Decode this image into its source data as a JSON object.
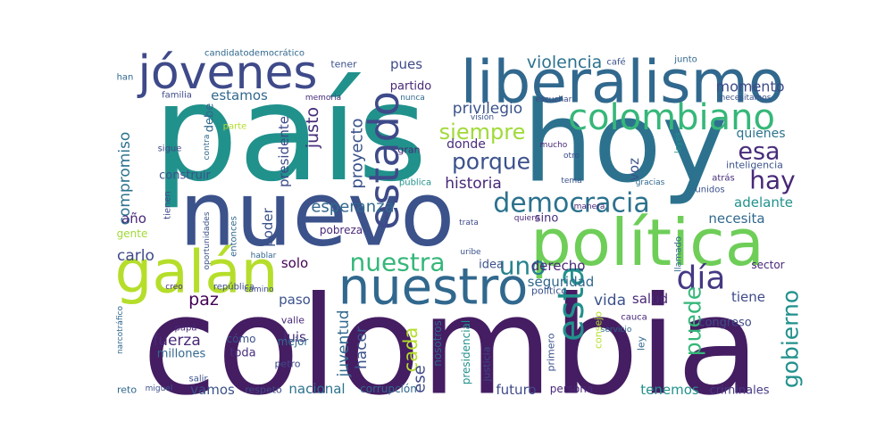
{
  "words": [
    "colombia",
    "país",
    "hoy",
    "nuevo",
    "política",
    "liberalismo",
    "jóvenes",
    "galán",
    "nuestro",
    "colombiano",
    "estado",
    "democracia",
    "nuestra",
    "siempre",
    "porque",
    "esta",
    "uno",
    "día",
    "hay",
    "esa",
    "gobierno",
    "puede",
    "violencia",
    "momento",
    "privilegio",
    "estamos",
    "compromiso",
    "proyecto",
    "presidente",
    "justo",
    "esperanza",
    "historia",
    "hacer",
    "juventud",
    "cada",
    "ese",
    "vamos",
    "nacional",
    "corrupción",
    "futuro",
    "tenemos",
    "criminales",
    "fuerza",
    "millones",
    "vida",
    "salud",
    "tiene",
    "paz",
    "carlo",
    "luis",
    "paso",
    "seguridad",
    "derecho",
    "idea",
    "sino",
    "necesita",
    "adelante",
    "quienes",
    "inteligencia",
    "pues",
    "partido",
    "tener",
    "memoria",
    "candidatodemocrático",
    "familia",
    "debe",
    "construir",
    "año",
    "poder",
    "solo",
    "pobreza",
    "entonces",
    "voz",
    "donde",
    "congreso",
    "sector",
    "mejor",
    "cómo",
    "toda",
    "petro",
    "valle",
    "salir",
    "reto",
    "respeto",
    "persona",
    "primero",
    "nosotros",
    "presidencial",
    "justicia",
    "consejo",
    "ley",
    "cauca",
    "unidos",
    "gente",
    "república",
    "gracias",
    "atrás",
    "uribe",
    "mucho",
    "escuchar",
    "nunca",
    "visión",
    "gran",
    "pública",
    "sigue",
    "contra",
    "parte",
    "café",
    "junto",
    "miguel",
    "narcotráfico",
    "papá",
    "camino",
    "creo",
    "hablar",
    "tema",
    "quiero",
    "trata",
    "político",
    "han",
    "tienen",
    "oportunidades",
    "leyes",
    "llamado",
    "otro",
    "manera",
    "necesitamos",
    "servicio"
  ]
}
